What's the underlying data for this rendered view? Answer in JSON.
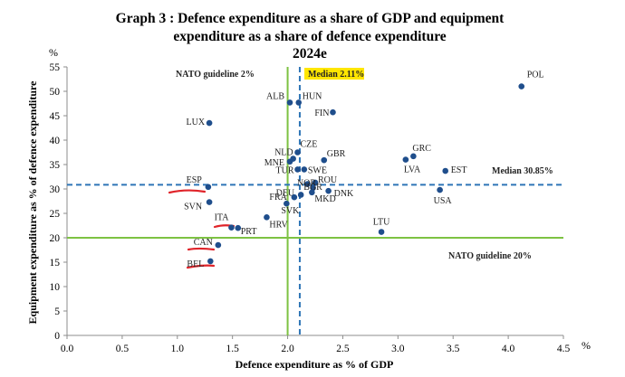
{
  "chart_data": {
    "type": "scatter",
    "title_lines": [
      "Graph 3 : Defence expenditure as a share of GDP and equipment",
      "expenditure as a share of defence expenditure",
      "2024e"
    ],
    "xlabel": "Defence expenditure as % of GDP",
    "ylabel": "Equipment expenditure as % of defence expenditure",
    "x_unit": "%",
    "y_unit": "%",
    "xlim": [
      0,
      4.5
    ],
    "ylim": [
      0,
      55
    ],
    "x_ticks": [
      0.0,
      0.5,
      1.0,
      1.5,
      2.0,
      2.5,
      3.0,
      3.5,
      4.0,
      4.5
    ],
    "x_tick_labels": [
      "0.0",
      "0.5",
      "1.0",
      "1.5",
      "2.0",
      "2.5",
      "3.0",
      "3.5",
      "4.0",
      "4.5"
    ],
    "y_ticks": [
      0,
      5,
      10,
      15,
      20,
      25,
      30,
      35,
      40,
      45,
      50,
      55
    ],
    "y_tick_labels": [
      "0",
      "5",
      "10",
      "15",
      "20",
      "25",
      "30",
      "35",
      "40",
      "45",
      "50",
      "55"
    ],
    "grid": false,
    "reference_lines": {
      "nato_gdp": {
        "value": 2.0,
        "label": "NATO guideline 2%",
        "color": "#7dc242"
      },
      "nato_equip": {
        "value": 20,
        "label": "NATO guideline 20%",
        "color": "#7dc242"
      },
      "median_gdp": {
        "value": 2.11,
        "label": "Median 2.11%",
        "color": "#2e75b6",
        "highlight": "#ffe600"
      },
      "median_equip": {
        "value": 30.85,
        "label": "Median 30.85%",
        "color": "#2e75b6"
      }
    },
    "point_color": "#1f4e8c",
    "points": [
      {
        "label": "POL",
        "x": 4.12,
        "y": 51.0
      },
      {
        "label": "ALB",
        "x": 2.02,
        "y": 47.7
      },
      {
        "label": "HUN",
        "x": 2.1,
        "y": 47.7
      },
      {
        "label": "FIN",
        "x": 2.41,
        "y": 45.7
      },
      {
        "label": "LUX",
        "x": 1.29,
        "y": 43.5
      },
      {
        "label": "CZE",
        "x": 2.09,
        "y": 37.5
      },
      {
        "label": "NLD",
        "x": 2.05,
        "y": 36.2
      },
      {
        "label": "MNE",
        "x": 2.02,
        "y": 35.6
      },
      {
        "label": "GBR",
        "x": 2.33,
        "y": 35.9
      },
      {
        "label": "GRC",
        "x": 3.14,
        "y": 36.7
      },
      {
        "label": "LVA",
        "x": 3.07,
        "y": 36.0
      },
      {
        "label": "TUR",
        "x": 2.09,
        "y": 34.0
      },
      {
        "label": "SWE",
        "x": 2.15,
        "y": 34.0
      },
      {
        "label": "EST",
        "x": 3.43,
        "y": 33.7
      },
      {
        "label": "ESP",
        "x": 1.28,
        "y": 30.4
      },
      {
        "label": "USA",
        "x": 3.38,
        "y": 29.8
      },
      {
        "label": "ROU",
        "x": 2.25,
        "y": 31.3
      },
      {
        "label": "NOR",
        "x": 2.18,
        "y": 31.0
      },
      {
        "label": "BGR",
        "x": 2.23,
        "y": 30.2
      },
      {
        "label": "DEU",
        "x": 2.12,
        "y": 28.8
      },
      {
        "label": "MKD",
        "x": 2.22,
        "y": 29.3
      },
      {
        "label": "DNK",
        "x": 2.37,
        "y": 29.6
      },
      {
        "label": "FRA",
        "x": 2.06,
        "y": 28.3
      },
      {
        "label": "SVN",
        "x": 1.29,
        "y": 27.3
      },
      {
        "label": "SVK",
        "x": 1.99,
        "y": 27.0
      },
      {
        "label": "HRV",
        "x": 1.81,
        "y": 24.2
      },
      {
        "label": "ITA",
        "x": 1.49,
        "y": 22.1
      },
      {
        "label": "PRT",
        "x": 1.55,
        "y": 22.0
      },
      {
        "label": "LTU",
        "x": 2.85,
        "y": 21.2
      },
      {
        "label": "CAN",
        "x": 1.37,
        "y": 18.5
      },
      {
        "label": "BEL",
        "x": 1.3,
        "y": 15.2
      }
    ],
    "annotation_marks": [
      {
        "near": "ESP",
        "color": "#e0242a"
      },
      {
        "near": "ITA",
        "color": "#e0242a"
      },
      {
        "near": "CAN",
        "color": "#e0242a"
      },
      {
        "near": "BEL",
        "color": "#e0242a"
      }
    ]
  }
}
